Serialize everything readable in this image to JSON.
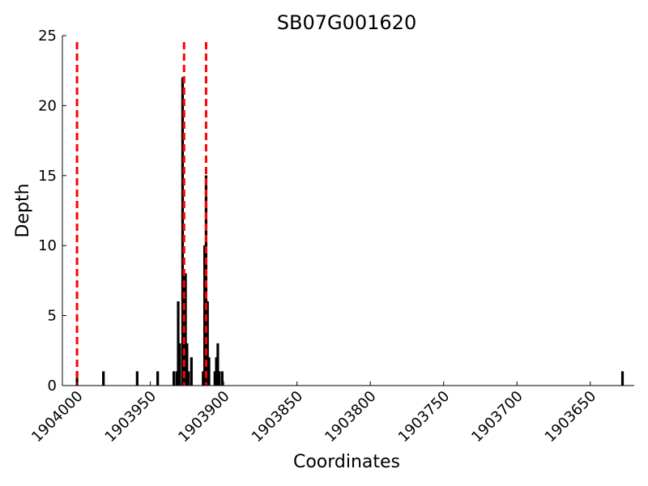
{
  "chart_data": {
    "type": "bar",
    "title": "SB07G001620",
    "xlabel": "Coordinates",
    "ylabel": "Depth",
    "x_reversed": true,
    "xlim": [
      1904010,
      1903620
    ],
    "ylim": [
      0,
      25
    ],
    "xticks": [
      1904000,
      1903950,
      1903900,
      1903850,
      1903800,
      1903750,
      1903700,
      1903650
    ],
    "yticks": [
      0,
      5,
      10,
      15,
      20,
      25
    ],
    "grid": false,
    "bar_color": "#000000",
    "marker_color": "#ff0000",
    "points": [
      {
        "x": 1904000,
        "y": 1
      },
      {
        "x": 1903982,
        "y": 1
      },
      {
        "x": 1903959,
        "y": 1
      },
      {
        "x": 1903945,
        "y": 1
      },
      {
        "x": 1903934,
        "y": 1
      },
      {
        "x": 1903932,
        "y": 1
      },
      {
        "x": 1903931,
        "y": 6
      },
      {
        "x": 1903930,
        "y": 3
      },
      {
        "x": 1903928,
        "y": 22
      },
      {
        "x": 1903927,
        "y": 8
      },
      {
        "x": 1903926,
        "y": 8
      },
      {
        "x": 1903925,
        "y": 3
      },
      {
        "x": 1903924,
        "y": 1
      },
      {
        "x": 1903922,
        "y": 2
      },
      {
        "x": 1903914,
        "y": 1
      },
      {
        "x": 1903913,
        "y": 10
      },
      {
        "x": 1903912,
        "y": 15
      },
      {
        "x": 1903911,
        "y": 6
      },
      {
        "x": 1903910,
        "y": 2
      },
      {
        "x": 1903906,
        "y": 1
      },
      {
        "x": 1903905,
        "y": 2
      },
      {
        "x": 1903904,
        "y": 3
      },
      {
        "x": 1903903,
        "y": 1
      },
      {
        "x": 1903901,
        "y": 1
      },
      {
        "x": 1903628,
        "y": 1
      }
    ],
    "markers": [
      1904000,
      1903927,
      1903912
    ]
  }
}
